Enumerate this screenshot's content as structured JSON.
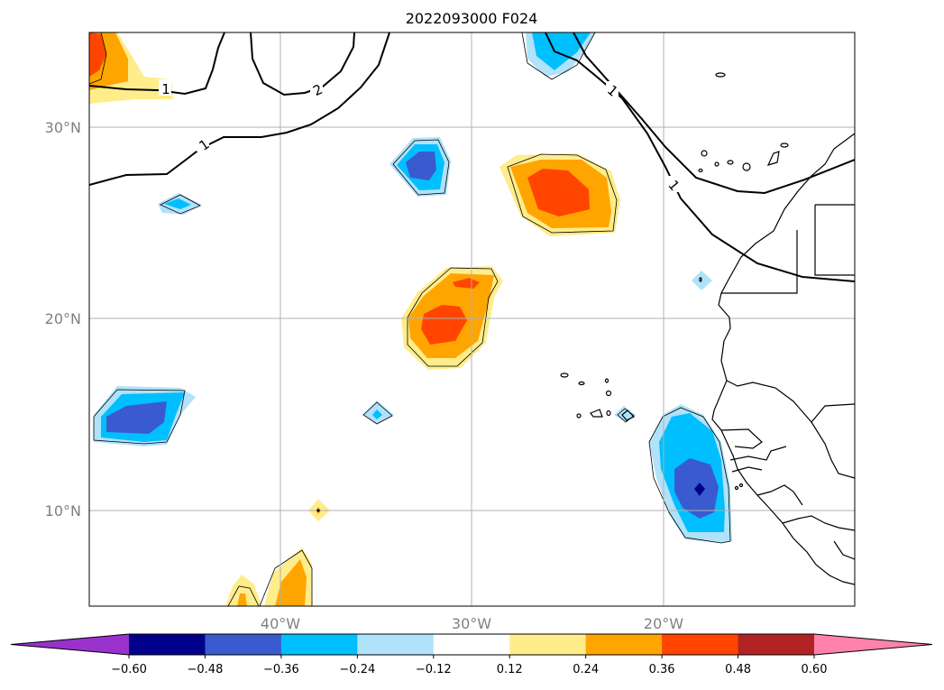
{
  "title": "2022093000 F024",
  "map": {
    "lon_range": [
      -50,
      -10
    ],
    "lat_range": [
      5,
      35
    ],
    "lon_ticks": [
      {
        "lon": -40,
        "label": "40°W"
      },
      {
        "lon": -30,
        "label": "30°W"
      },
      {
        "lon": -20,
        "label": "20°W"
      }
    ],
    "lat_ticks": [
      {
        "lat": 10,
        "label": "10°N"
      },
      {
        "lat": 20,
        "label": "20°N"
      },
      {
        "lat": 30,
        "label": "30°N"
      }
    ],
    "gridlines": true,
    "contour_labels": [
      "1",
      "2",
      "1",
      "1",
      "1"
    ]
  },
  "colorbar": {
    "orientation": "horizontal",
    "extend": "both",
    "boundaries": [
      -0.6,
      -0.48,
      -0.36,
      -0.24,
      -0.12,
      0.12,
      0.24,
      0.36,
      0.48,
      0.6
    ],
    "tick_labels": [
      "−0.60",
      "−0.48",
      "−0.36",
      "−0.24",
      "−0.12",
      "0.12",
      "0.24",
      "0.36",
      "0.48",
      "0.60"
    ],
    "colors": [
      "#9932cc",
      "#00008b",
      "#3a5bcf",
      "#00bfff",
      "#b0e2fa",
      "#ffffff",
      "#ffec8b",
      "#ffa500",
      "#ff4500",
      "#b22222",
      "#ff82ab"
    ]
  }
}
